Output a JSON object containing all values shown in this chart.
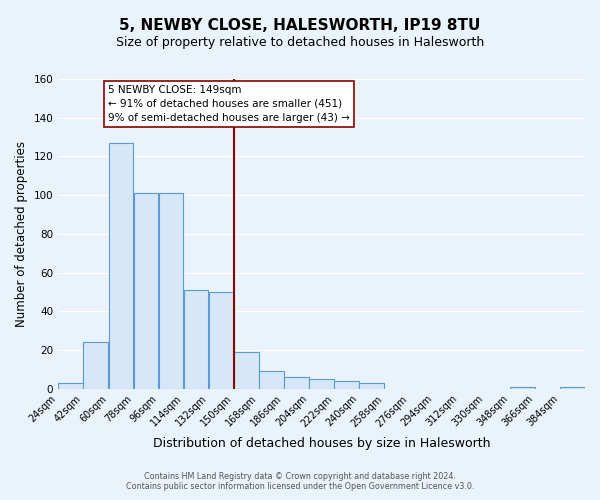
{
  "title": "5, NEWBY CLOSE, HALESWORTH, IP19 8TU",
  "subtitle": "Size of property relative to detached houses in Halesworth",
  "xlabel": "Distribution of detached houses by size in Halesworth",
  "ylabel": "Number of detached properties",
  "footnote1": "Contains HM Land Registry data © Crown copyright and database right 2024.",
  "footnote2": "Contains public sector information licensed under the Open Government Licence v3.0.",
  "bin_edges": [
    24,
    42,
    60,
    78,
    96,
    114,
    132,
    150,
    168,
    186,
    204,
    222,
    240,
    258,
    276,
    294,
    312,
    330,
    348,
    366,
    384
  ],
  "bar_heights": [
    3,
    24,
    127,
    101,
    101,
    51,
    50,
    19,
    9,
    6,
    5,
    4,
    3,
    0,
    0,
    0,
    0,
    0,
    1,
    0,
    1
  ],
  "bar_facecolor": "#d6e8f7",
  "bar_edgecolor": "#5b9bd5",
  "vline_x": 150,
  "vline_color": "#8b0000",
  "annotation_text": "5 NEWBY CLOSE: 149sqm\n← 91% of detached houses are smaller (451)\n9% of semi-detached houses are larger (43) →",
  "annotation_box_edgecolor": "#8b0000",
  "annotation_box_facecolor": "#ffffff",
  "ylim": [
    0,
    160
  ],
  "tick_labels": [
    "24sqm",
    "42sqm",
    "60sqm",
    "78sqm",
    "96sqm",
    "114sqm",
    "132sqm",
    "150sqm",
    "168sqm",
    "186sqm",
    "204sqm",
    "222sqm",
    "240sqm",
    "258sqm",
    "276sqm",
    "294sqm",
    "312sqm",
    "330sqm",
    "348sqm",
    "366sqm",
    "384sqm"
  ],
  "background_color": "#eaf2fb",
  "grid_color": "#ffffff",
  "title_fontsize": 11,
  "subtitle_fontsize": 9,
  "axis_label_fontsize": 8.5,
  "tick_fontsize": 7,
  "annotation_fontsize": 7.5
}
